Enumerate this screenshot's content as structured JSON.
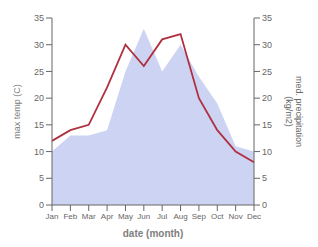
{
  "chart_data": {
    "type": "line",
    "categories": [
      "Jan",
      "Feb",
      "Mar",
      "Apr",
      "May",
      "Jun",
      "Jul",
      "Aug",
      "Sep",
      "Oct",
      "Nov",
      "Dec"
    ],
    "series": [
      {
        "type": "line",
        "color": "#b03040",
        "values": [
          12,
          14,
          15,
          22,
          30,
          26,
          31,
          32,
          20,
          14,
          10,
          8
        ]
      },
      {
        "type": "area",
        "color": "#c0c8f0",
        "axis": "y2",
        "values": [
          10,
          13,
          13,
          14,
          25,
          33,
          25,
          30,
          24,
          19,
          11,
          10
        ]
      }
    ],
    "xlabel": "date (month)",
    "ylabel": "max temp (C)",
    "y2label": "med. precipitation\n(kg/m2)",
    "ylim": [
      0,
      35
    ],
    "yticks": [
      0,
      5,
      10,
      15,
      20,
      25,
      30,
      35
    ],
    "y2lim": [
      0,
      35
    ],
    "y2ticks": [
      0,
      5,
      10,
      15,
      20,
      25,
      30,
      35
    ],
    "grid": false
  }
}
